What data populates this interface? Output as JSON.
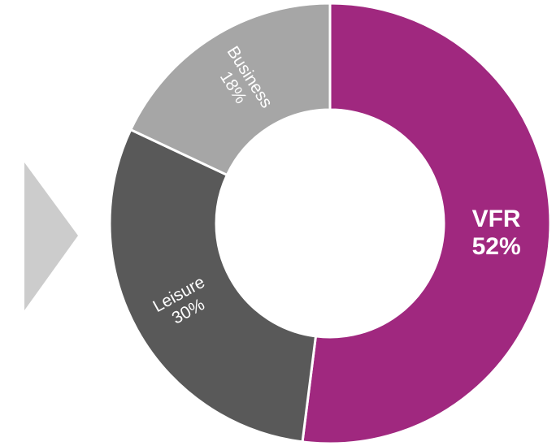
{
  "chart_data": {
    "type": "donut",
    "categories": [
      "VFR",
      "Leisure",
      "Business"
    ],
    "values": [
      52,
      30,
      18
    ],
    "value_labels": [
      "52%",
      "30%",
      "18%"
    ],
    "colors": [
      "#a0287f",
      "#595959",
      "#a6a6a6"
    ]
  }
}
